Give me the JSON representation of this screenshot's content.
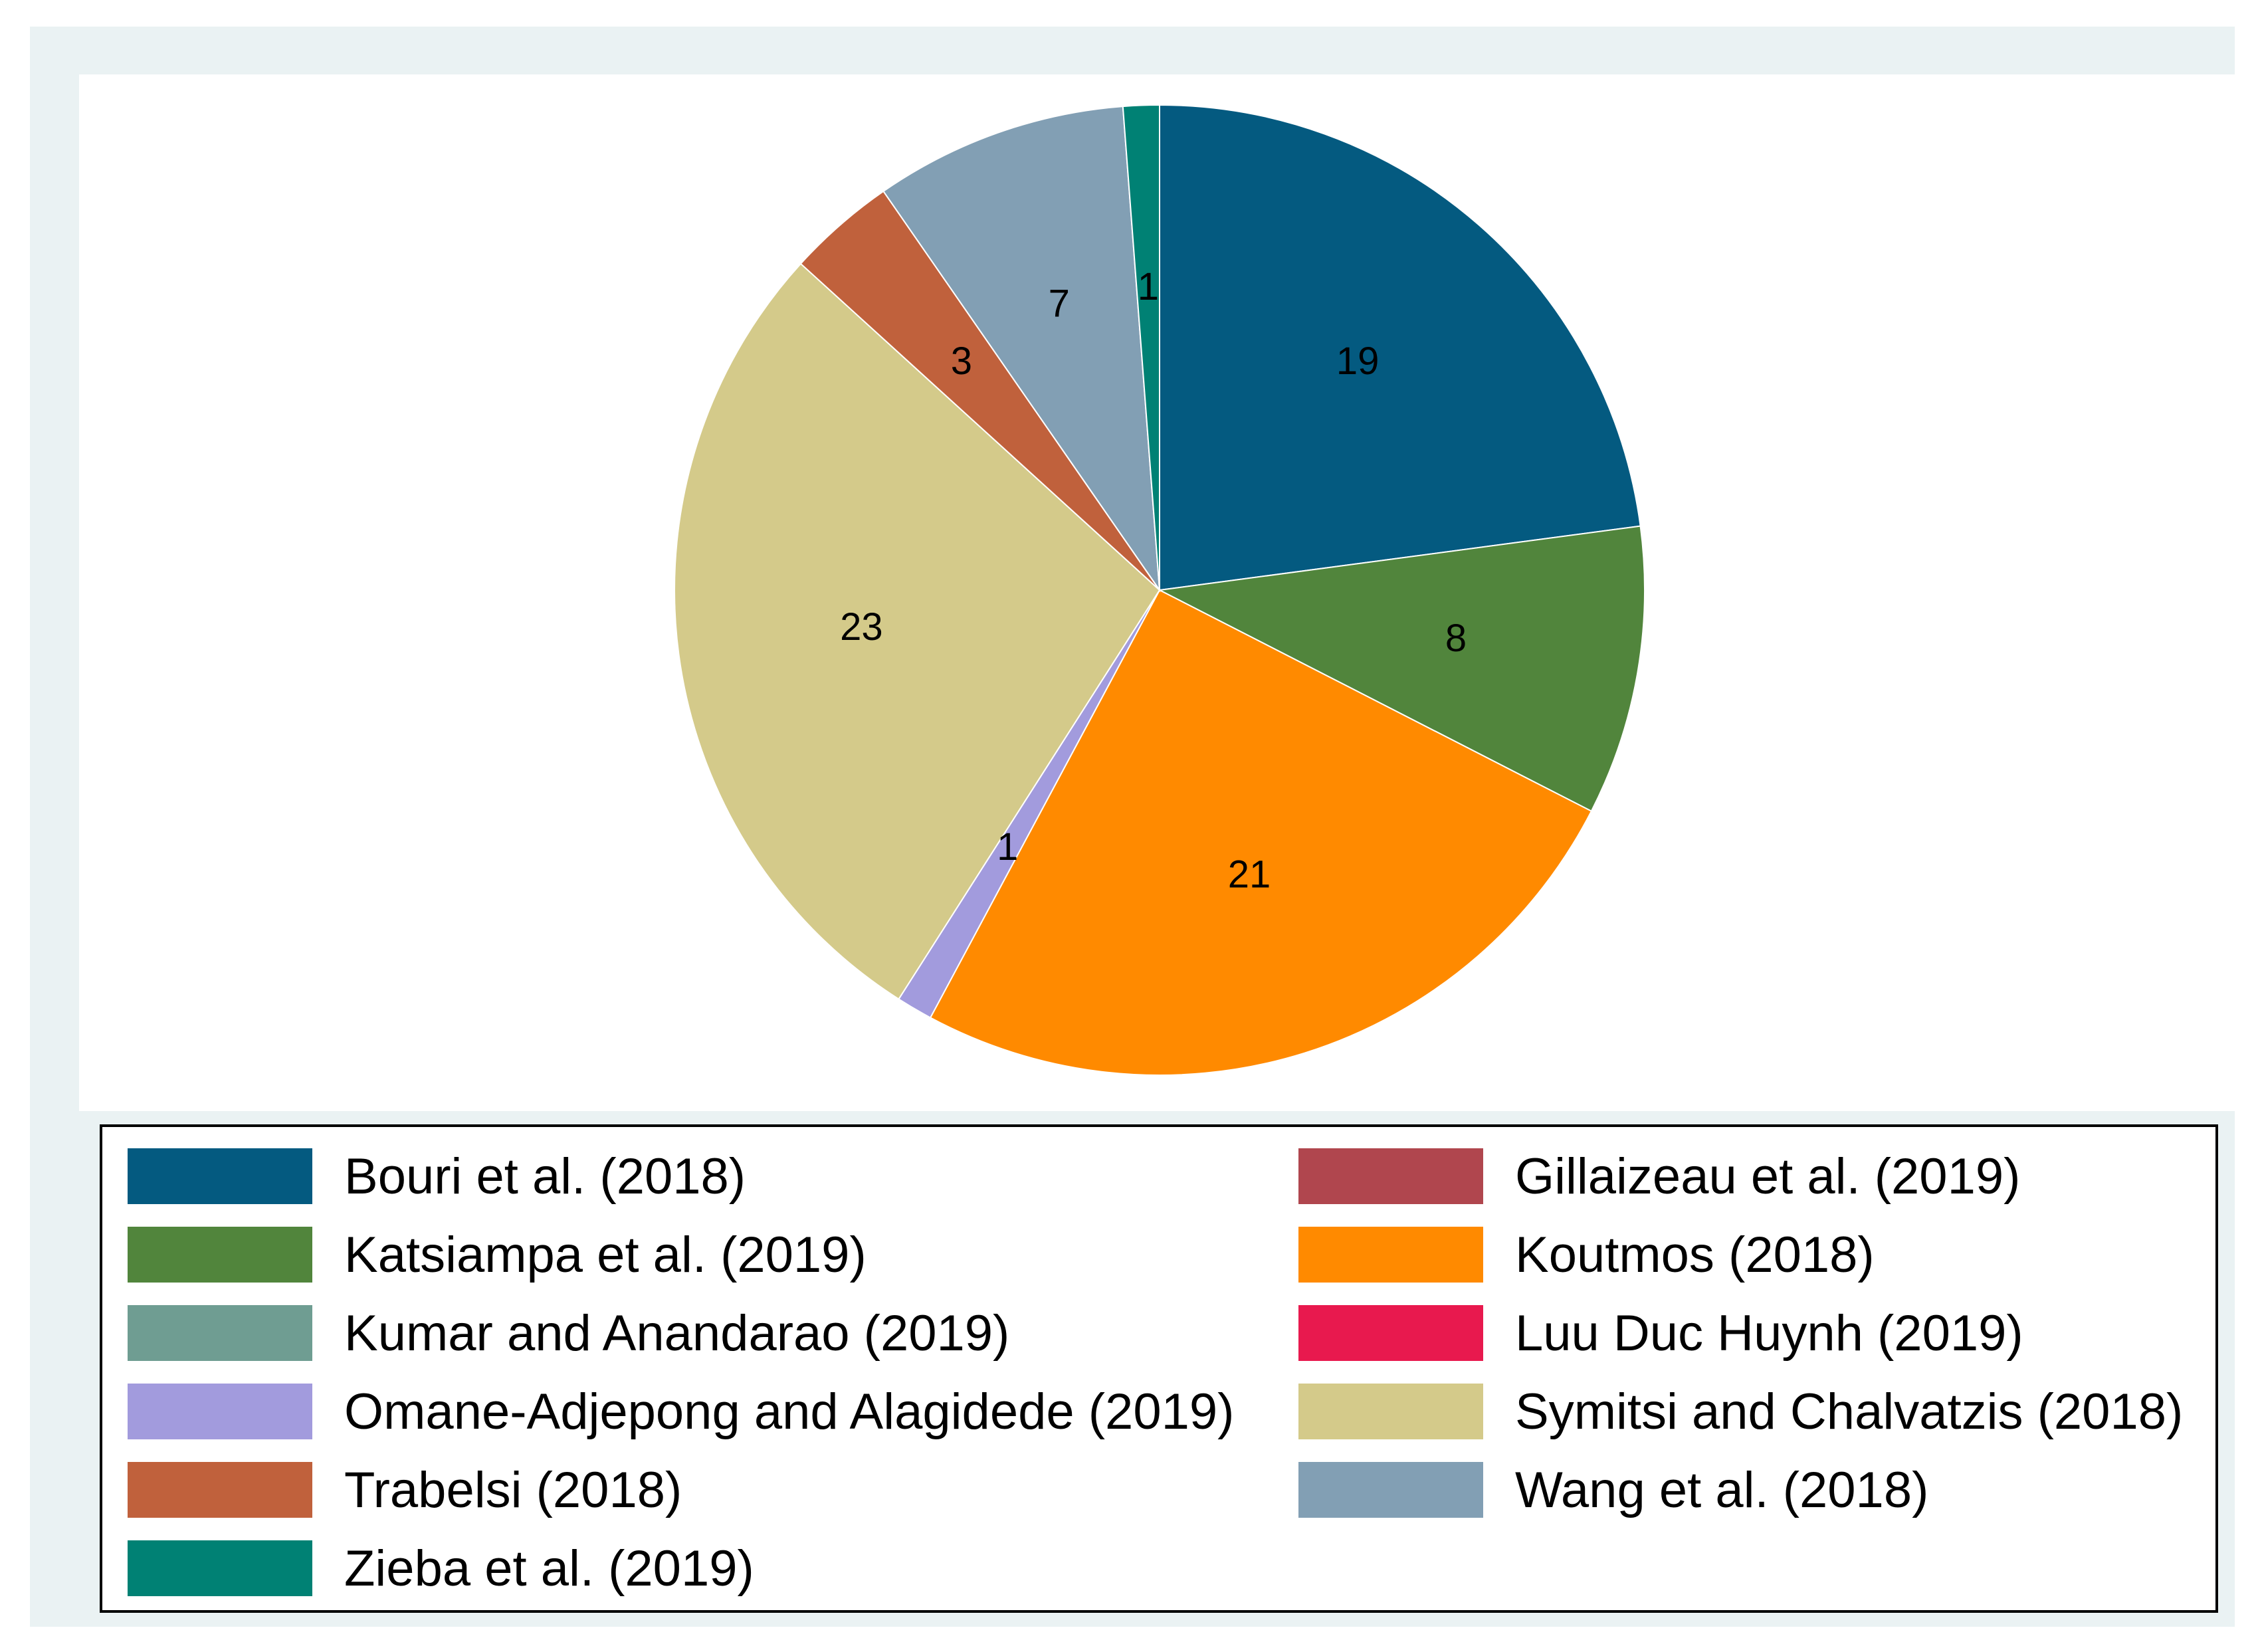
{
  "chart_data": {
    "type": "pie",
    "title": "",
    "start_angle_deg": 0,
    "direction": "clockwise",
    "slices": [
      {
        "label": "Bouri et al. (2018)",
        "value": 19,
        "color": "#045a80"
      },
      {
        "label": "Katsiampa et al. (2019)",
        "value": 8,
        "color": "#51853c"
      },
      {
        "label": "Koutmos (2018)",
        "value": 21,
        "color": "#ff8a00"
      },
      {
        "label": "Omane-Adjepong and Alagidede (2019)",
        "value": 1,
        "color": "#a29bdd"
      },
      {
        "label": "Symitsi and Chalvatzis (2018)",
        "value": 23,
        "color": "#d4ca8a"
      },
      {
        "label": "Trabelsi (2018)",
        "value": 3,
        "color": "#c0613c"
      },
      {
        "label": "Wang et al. (2018)",
        "value": 7,
        "color": "#829fb4"
      },
      {
        "label": "Zieba et al. (2019)",
        "value": 1,
        "color": "#008174"
      }
    ],
    "data_labels": [
      "19",
      "8",
      "21",
      "1",
      "23",
      "3",
      "7",
      "1"
    ],
    "legend": {
      "placement": "bottom",
      "columns": 2,
      "entries": [
        {
          "label": "Bouri et al. (2018)",
          "color": "#045a80"
        },
        {
          "label": "Gillaizeau et al. (2019)",
          "color": "#b0464e"
        },
        {
          "label": "Katsiampa et al. (2019)",
          "color": "#51853c"
        },
        {
          "label": "Koutmos (2018)",
          "color": "#ff8a00"
        },
        {
          "label": "Kumar and Anandarao (2019)",
          "color": "#6f9d92"
        },
        {
          "label": "Luu Duc Huynh (2019)",
          "color": "#e8194e"
        },
        {
          "label": "Omane-Adjepong and Alagidede (2019)",
          "color": "#a29bdd"
        },
        {
          "label": "Symitsi and Chalvatzis (2018)",
          "color": "#d4ca8a"
        },
        {
          "label": "Trabelsi (2018)",
          "color": "#c0613c"
        },
        {
          "label": "Wang et al. (2018)",
          "color": "#829fb4"
        },
        {
          "label": "Zieba et al. (2019)",
          "color": "#008174"
        }
      ]
    }
  }
}
